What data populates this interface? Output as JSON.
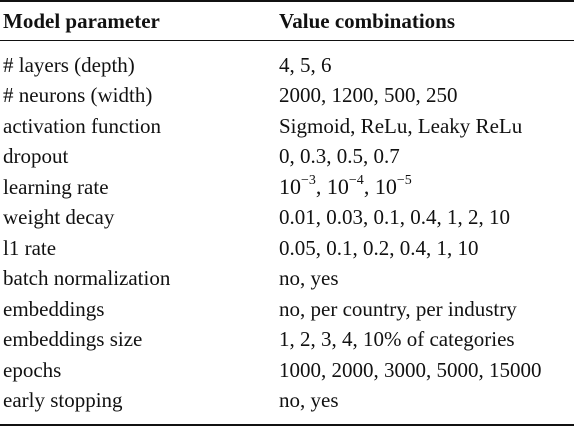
{
  "table": {
    "headers": {
      "parameter": "Model parameter",
      "values": "Value combinations"
    },
    "rows": [
      {
        "parameter": "# layers (depth)",
        "values": "4, 5, 6"
      },
      {
        "parameter": "# neurons (width)",
        "values": "2000, 1200, 500, 250"
      },
      {
        "parameter": "activation function",
        "values": "Sigmoid, ReLu, Leaky ReLu"
      },
      {
        "parameter": "dropout",
        "values": "0, 0.3, 0.5, 0.7"
      },
      {
        "parameter": "learning rate",
        "values": "10^-3, 10^-4, 10^-5",
        "values_parts": [
          {
            "base": "10",
            "exp": "−3"
          },
          {
            "base": "10",
            "exp": "−4"
          },
          {
            "base": "10",
            "exp": "−5"
          }
        ]
      },
      {
        "parameter": "weight decay",
        "values": "0.01, 0.03, 0.1, 0.4, 1, 2, 10"
      },
      {
        "parameter": "l1 rate",
        "values": "0.05, 0.1, 0.2, 0.4, 1, 10"
      },
      {
        "parameter": "batch normalization",
        "values": "no, yes"
      },
      {
        "parameter": "embeddings",
        "values": "no, per country, per industry"
      },
      {
        "parameter": "embeddings size",
        "values": "1, 2, 3, 4, 10% of categories"
      },
      {
        "parameter": "epochs",
        "values": "1000, 2000, 3000, 5000, 15000"
      },
      {
        "parameter": "early stopping",
        "values": "no, yes"
      }
    ]
  }
}
